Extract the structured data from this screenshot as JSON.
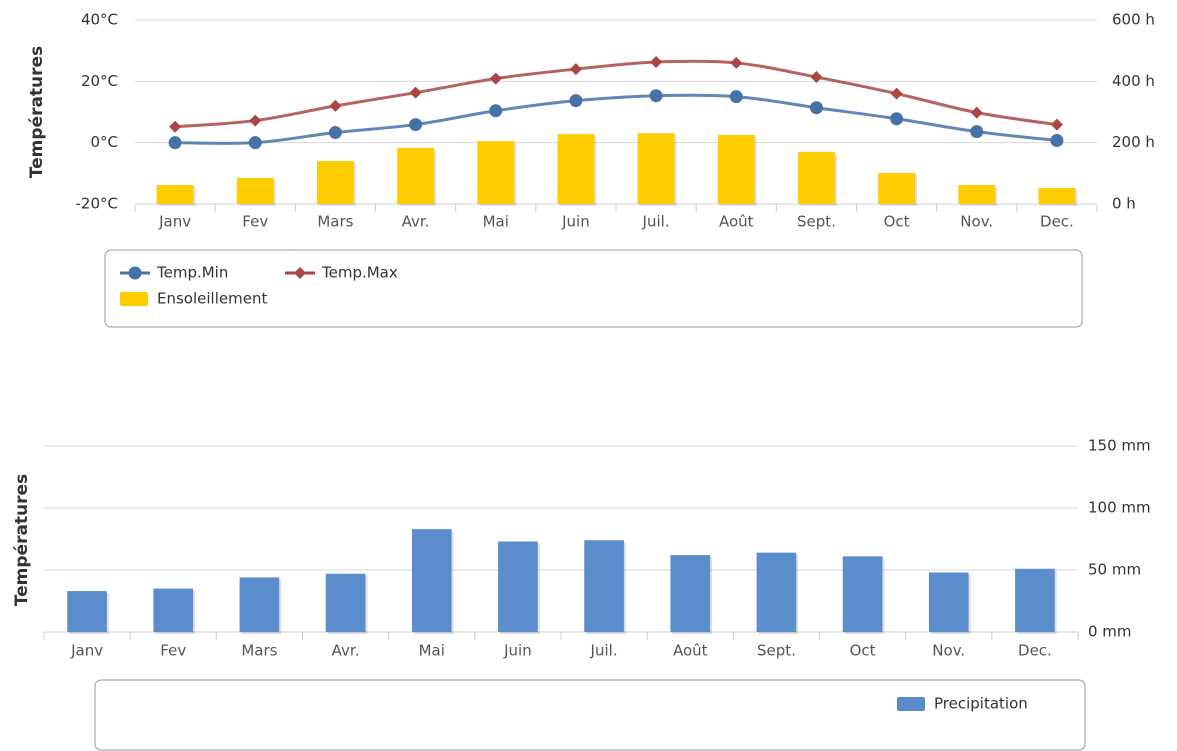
{
  "chart_data": [
    {
      "type": "combo",
      "ylabel": "Températures",
      "categories": [
        "Janv",
        "Fev",
        "Mars",
        "Avr.",
        "Mai",
        "Juin",
        "Juil.",
        "Août",
        "Sept.",
        "Oct",
        "Nov.",
        "Dec."
      ],
      "ylim": [
        -20,
        40
      ],
      "yticks": [
        {
          "value": -20,
          "label": "-20°C"
        },
        {
          "value": 0,
          "label": "0°C"
        },
        {
          "value": 20,
          "label": "20°C"
        },
        {
          "value": 40,
          "label": "40°C"
        }
      ],
      "y2lim": [
        0,
        600
      ],
      "y2ticks": [
        {
          "value": 0,
          "label": "0 h"
        },
        {
          "value": 200,
          "label": "200 h"
        },
        {
          "value": 400,
          "label": "400 h"
        },
        {
          "value": 600,
          "label": "600 h"
        }
      ],
      "grid": true,
      "series": [
        {
          "name": "Temp.Min",
          "type": "line",
          "marker": "circle",
          "color": "#4572a7",
          "values": [
            0,
            0,
            3.3,
            5.9,
            10.4,
            13.7,
            15.3,
            15,
            11.4,
            7.8,
            3.6,
            0.7
          ]
        },
        {
          "name": "Temp.Max",
          "type": "line",
          "marker": "diamond",
          "color": "#aa4643",
          "values": [
            5.2,
            7.2,
            12,
            16.3,
            20.9,
            24,
            26.3,
            26,
            21.4,
            16,
            9.8,
            5.9
          ]
        },
        {
          "name": "Ensoleillement",
          "type": "bar",
          "axis": "y2",
          "color": "#ffcc00",
          "values": [
            62,
            85,
            140,
            183,
            205,
            228,
            231,
            225,
            170,
            101,
            62,
            52
          ]
        }
      ]
    },
    {
      "type": "bar",
      "ylabel": "Températures",
      "categories": [
        "Janv",
        "Fev",
        "Mars",
        "Avr.",
        "Mai",
        "Juin",
        "Juil.",
        "Août",
        "Sept.",
        "Oct",
        "Nov.",
        "Dec."
      ],
      "y2lim": [
        0,
        150
      ],
      "y2ticks": [
        {
          "value": 0,
          "label": "0 mm"
        },
        {
          "value": 50,
          "label": "50 mm"
        },
        {
          "value": 100,
          "label": "100 mm"
        },
        {
          "value": 150,
          "label": "150 mm"
        }
      ],
      "grid": true,
      "series": [
        {
          "name": "Precipitation",
          "type": "bar",
          "axis": "y2",
          "color": "#5b8ccc",
          "values": [
            33,
            35,
            44,
            47,
            83,
            73,
            74,
            62,
            64,
            61,
            48,
            51
          ]
        }
      ]
    }
  ]
}
